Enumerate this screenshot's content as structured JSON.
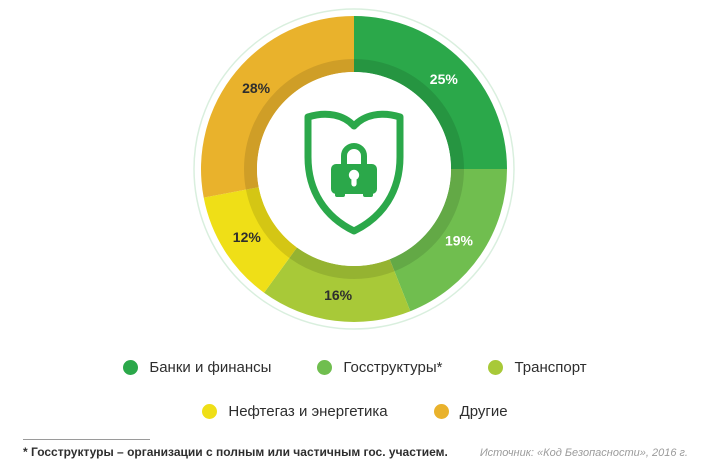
{
  "chart_data": {
    "type": "pie",
    "variant": "donut",
    "unit": "%",
    "start_angle_deg": 0,
    "direction": "clockwise",
    "legend_position": "bottom",
    "center_icon": "shield-lock",
    "center_icon_color": "#2BA84A",
    "segments": [
      {
        "label": "Банки и финансы",
        "value": 25,
        "color": "#2BA84A",
        "label_text": "25%",
        "label_color": "#ffffff"
      },
      {
        "label": "Госструктуры*",
        "value": 19,
        "color": "#70BE4F",
        "label_text": "19%",
        "label_color": "#ffffff"
      },
      {
        "label": "Транспорт",
        "value": 16,
        "color": "#A8C938",
        "label_text": "16%",
        "label_color": "#2e2e2e"
      },
      {
        "label": "Нефтегаз и энергетика",
        "value": 12,
        "color": "#EFDF17",
        "label_text": "12%",
        "label_color": "#2e2e2e"
      },
      {
        "label": "Другие",
        "value": 28,
        "color": "#E9B22C",
        "label_text": "28%",
        "label_color": "#2e2e2e"
      }
    ],
    "legend_rows": [
      [
        0,
        1,
        2
      ],
      [
        3,
        4
      ]
    ]
  },
  "footer": {
    "note": "* Госструктуры – организации с полным или частичным гос. участием.",
    "source": "Источник: «Код Безопасности», 2016 г."
  }
}
